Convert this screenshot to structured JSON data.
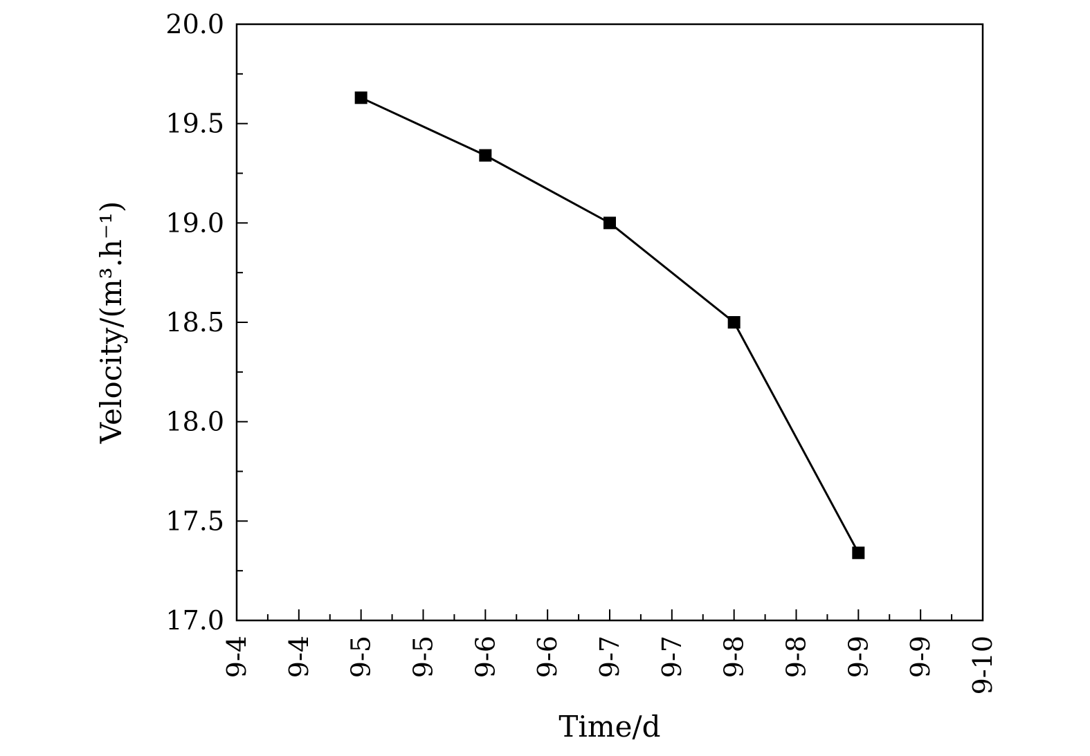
{
  "chart_data": {
    "type": "line",
    "title": "",
    "xlabel": "Time/d",
    "ylabel": "Velocity/(m³.h⁻¹)",
    "x_tick_labels": [
      "9-4",
      "9-4",
      "9-5",
      "9-5",
      "9-6",
      "9-6",
      "9-7",
      "9-7",
      "9-8",
      "9-8",
      "9-9",
      "9-9",
      "9-10"
    ],
    "y_tick_labels": [
      "17.0",
      "17.5",
      "18.0",
      "18.5",
      "19.0",
      "19.5",
      "20.0"
    ],
    "ylim": [
      17.0,
      20.0
    ],
    "grid": false,
    "marker": "filled-square",
    "series": [
      {
        "x": [
          "9-5",
          "9-6",
          "9-7",
          "9-8",
          "9-9"
        ],
        "values": [
          19.63,
          19.34,
          19.0,
          18.5,
          17.34
        ]
      }
    ]
  }
}
